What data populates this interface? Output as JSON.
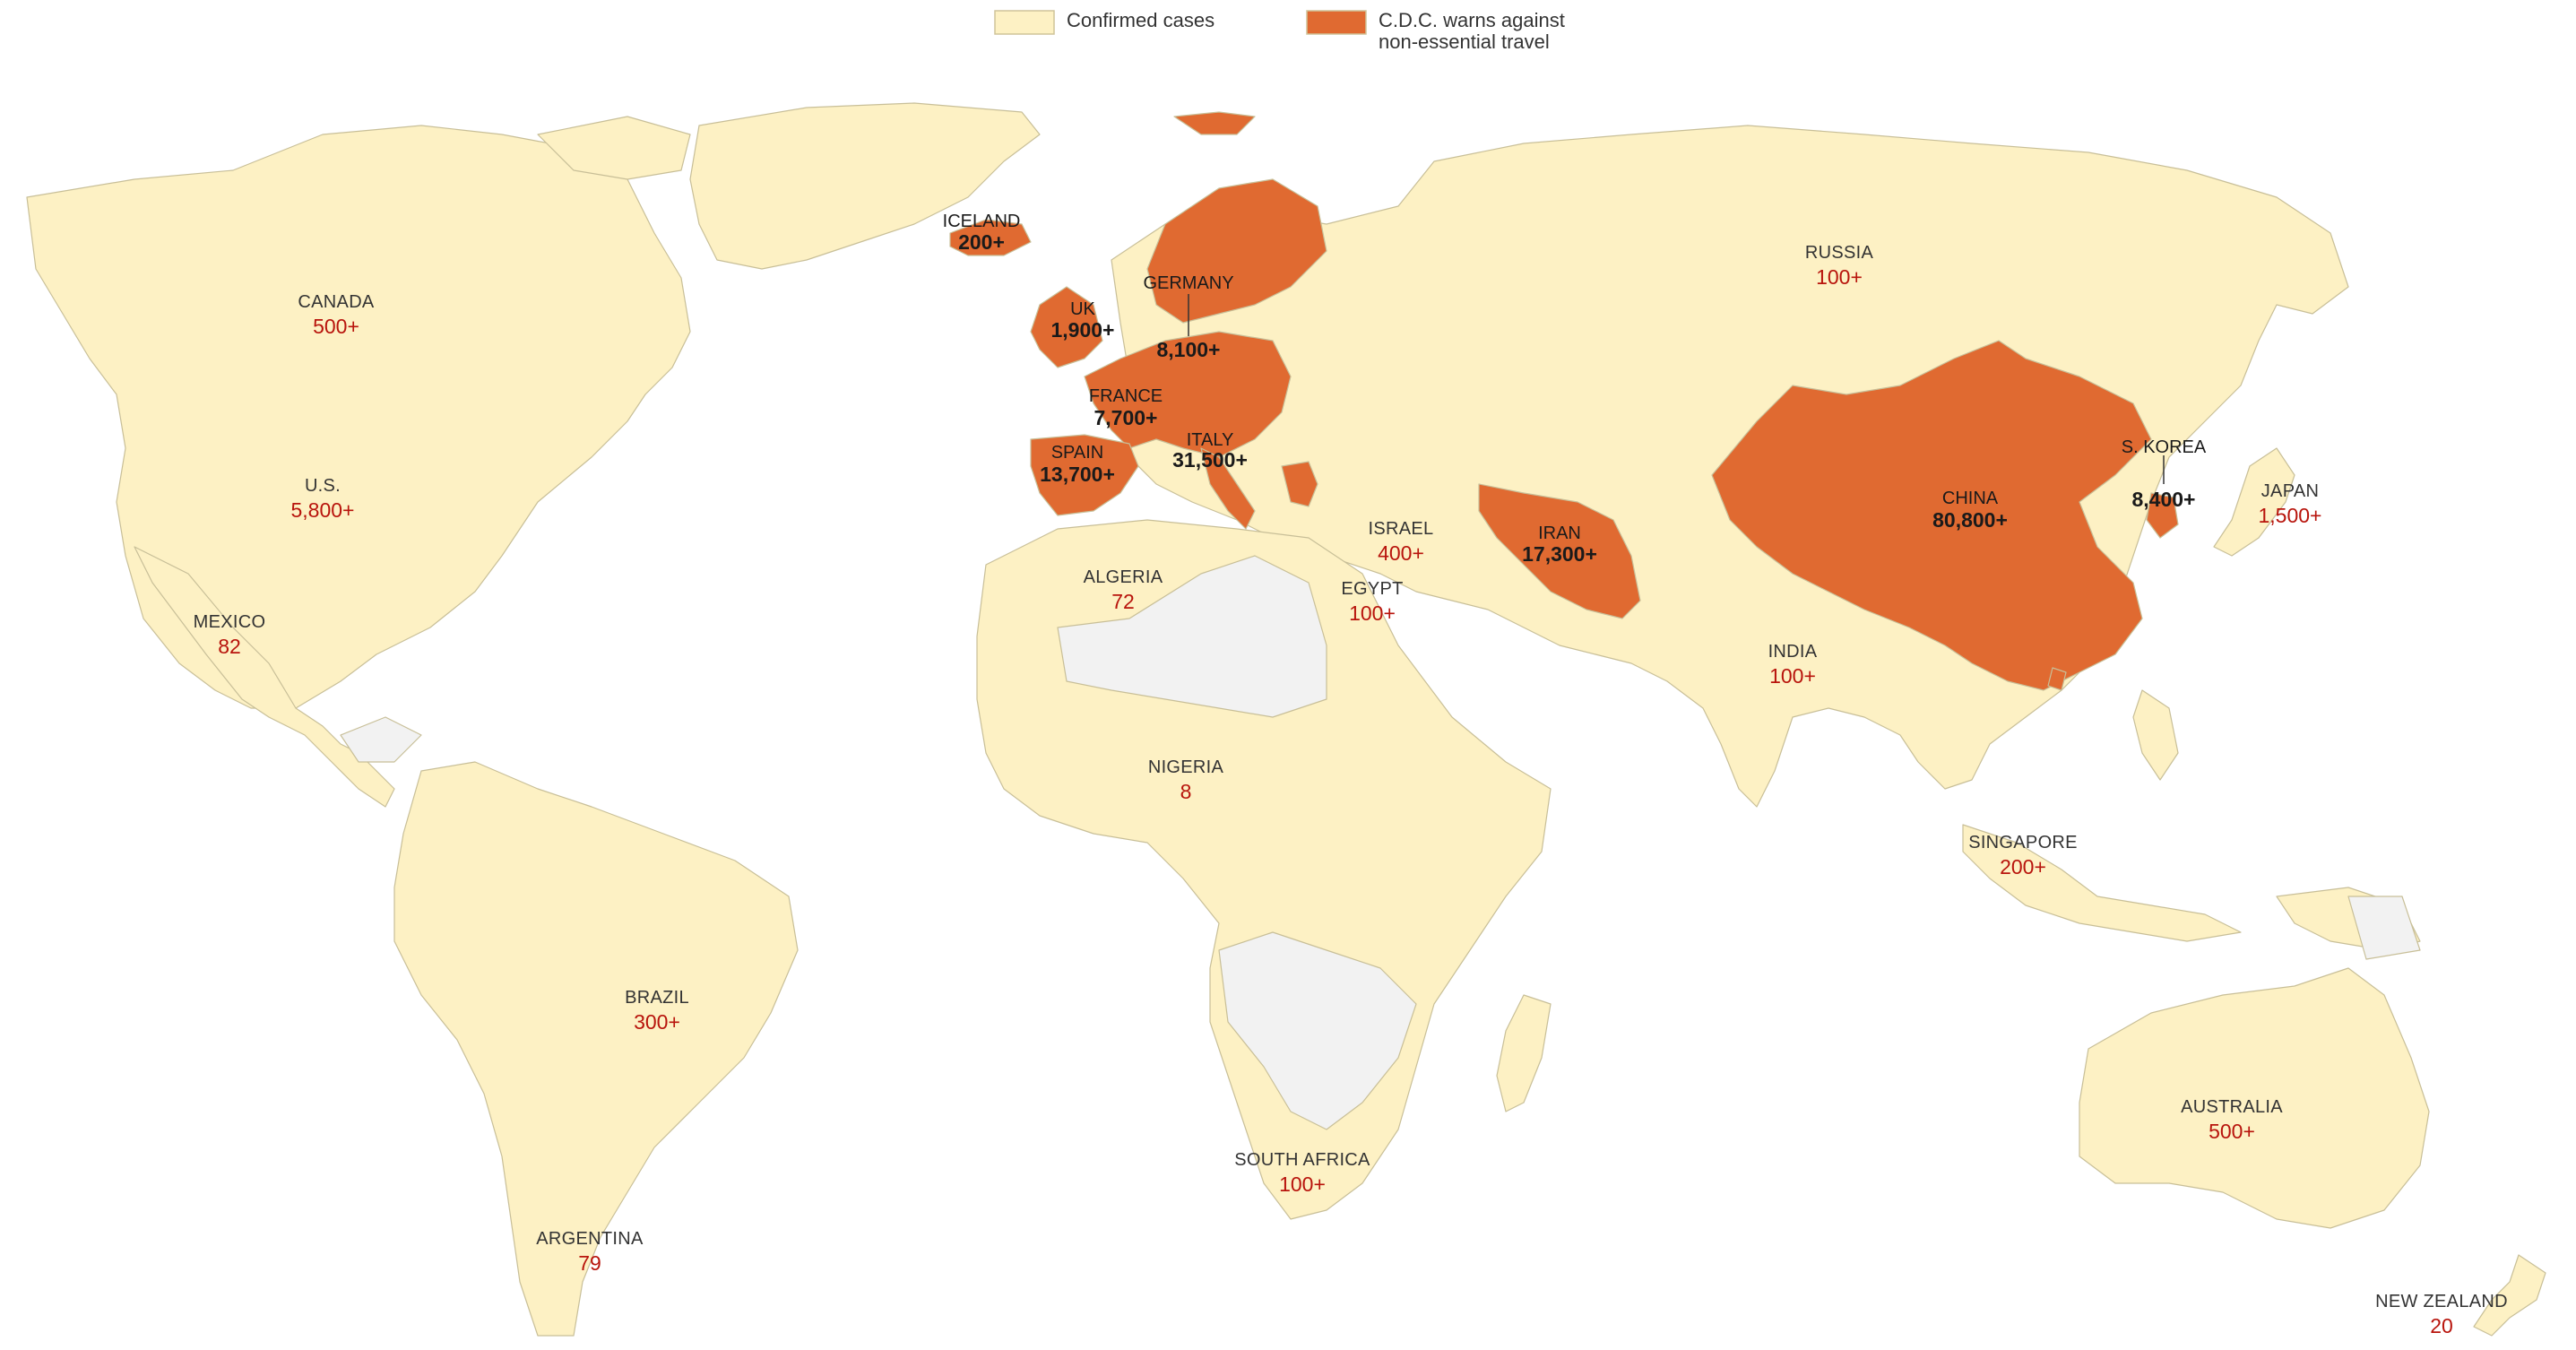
{
  "legend": {
    "confirmed_label": "Confirmed cases",
    "cdc_label_line1": "C.D.C. warns against",
    "cdc_label_line2": "non-essential travel"
  },
  "colors": {
    "confirmed": "#fdf1c4",
    "cdc_warning": "#e06a31",
    "no_data": "#f2f2f2",
    "value_text": "#b8140c"
  },
  "countries": {
    "iceland": {
      "name": "ICELAND",
      "value": "200+",
      "cdc_warning": true
    },
    "uk": {
      "name": "UK",
      "value": "1,900+",
      "cdc_warning": true
    },
    "germany": {
      "name": "GERMANY",
      "value": "8,100+",
      "cdc_warning": true
    },
    "france": {
      "name": "FRANCE",
      "value": "7,700+",
      "cdc_warning": true
    },
    "spain": {
      "name": "SPAIN",
      "value": "13,700+",
      "cdc_warning": true
    },
    "italy": {
      "name": "ITALY",
      "value": "31,500+",
      "cdc_warning": true
    },
    "iran": {
      "name": "IRAN",
      "value": "17,300+",
      "cdc_warning": true
    },
    "china": {
      "name": "CHINA",
      "value": "80,800+",
      "cdc_warning": true
    },
    "s_korea": {
      "name": "S. KOREA",
      "value": "8,400+",
      "cdc_warning": true
    },
    "canada": {
      "name": "CANADA",
      "value": "500+",
      "cdc_warning": false
    },
    "us": {
      "name": "U.S.",
      "value": "5,800+",
      "cdc_warning": false
    },
    "mexico": {
      "name": "MEXICO",
      "value": "82",
      "cdc_warning": false
    },
    "brazil": {
      "name": "BRAZIL",
      "value": "300+",
      "cdc_warning": false
    },
    "argentina": {
      "name": "ARGENTINA",
      "value": "79",
      "cdc_warning": false
    },
    "algeria": {
      "name": "ALGERIA",
      "value": "72",
      "cdc_warning": false
    },
    "nigeria": {
      "name": "NIGERIA",
      "value": "8",
      "cdc_warning": false
    },
    "south_africa": {
      "name": "SOUTH AFRICA",
      "value": "100+",
      "cdc_warning": false
    },
    "egypt": {
      "name": "EGYPT",
      "value": "100+",
      "cdc_warning": false
    },
    "israel": {
      "name": "ISRAEL",
      "value": "400+",
      "cdc_warning": false
    },
    "russia": {
      "name": "RUSSIA",
      "value": "100+",
      "cdc_warning": false
    },
    "india": {
      "name": "INDIA",
      "value": "100+",
      "cdc_warning": false
    },
    "japan": {
      "name": "JAPAN",
      "value": "1,500+",
      "cdc_warning": false
    },
    "singapore": {
      "name": "SINGAPORE",
      "value": "200+",
      "cdc_warning": false
    },
    "australia": {
      "name": "AUSTRALIA",
      "value": "500+",
      "cdc_warning": false
    },
    "new_zealand": {
      "name": "NEW ZEALAND",
      "value": "20",
      "cdc_warning": false
    }
  }
}
